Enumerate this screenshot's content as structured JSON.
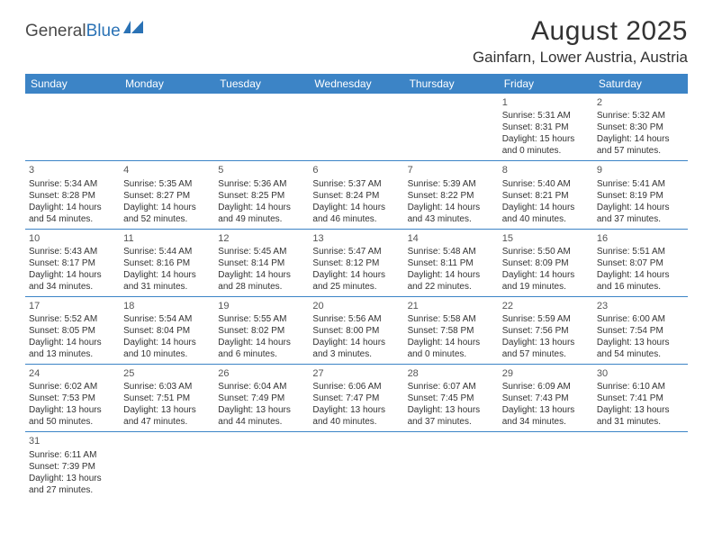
{
  "logo": {
    "part1": "General",
    "part2": "Blue"
  },
  "title": "August 2025",
  "location": "Gainfarn, Lower Austria, Austria",
  "header_bg": "#3c84c6",
  "border_color": "#3c84c6",
  "dayNames": [
    "Sunday",
    "Monday",
    "Tuesday",
    "Wednesday",
    "Thursday",
    "Friday",
    "Saturday"
  ],
  "weeks": [
    [
      null,
      null,
      null,
      null,
      null,
      {
        "n": "1",
        "r": "Sunrise: 5:31 AM",
        "s": "Sunset: 8:31 PM",
        "d1": "Daylight: 15 hours",
        "d2": "and 0 minutes."
      },
      {
        "n": "2",
        "r": "Sunrise: 5:32 AM",
        "s": "Sunset: 8:30 PM",
        "d1": "Daylight: 14 hours",
        "d2": "and 57 minutes."
      }
    ],
    [
      {
        "n": "3",
        "r": "Sunrise: 5:34 AM",
        "s": "Sunset: 8:28 PM",
        "d1": "Daylight: 14 hours",
        "d2": "and 54 minutes."
      },
      {
        "n": "4",
        "r": "Sunrise: 5:35 AM",
        "s": "Sunset: 8:27 PM",
        "d1": "Daylight: 14 hours",
        "d2": "and 52 minutes."
      },
      {
        "n": "5",
        "r": "Sunrise: 5:36 AM",
        "s": "Sunset: 8:25 PM",
        "d1": "Daylight: 14 hours",
        "d2": "and 49 minutes."
      },
      {
        "n": "6",
        "r": "Sunrise: 5:37 AM",
        "s": "Sunset: 8:24 PM",
        "d1": "Daylight: 14 hours",
        "d2": "and 46 minutes."
      },
      {
        "n": "7",
        "r": "Sunrise: 5:39 AM",
        "s": "Sunset: 8:22 PM",
        "d1": "Daylight: 14 hours",
        "d2": "and 43 minutes."
      },
      {
        "n": "8",
        "r": "Sunrise: 5:40 AM",
        "s": "Sunset: 8:21 PM",
        "d1": "Daylight: 14 hours",
        "d2": "and 40 minutes."
      },
      {
        "n": "9",
        "r": "Sunrise: 5:41 AM",
        "s": "Sunset: 8:19 PM",
        "d1": "Daylight: 14 hours",
        "d2": "and 37 minutes."
      }
    ],
    [
      {
        "n": "10",
        "r": "Sunrise: 5:43 AM",
        "s": "Sunset: 8:17 PM",
        "d1": "Daylight: 14 hours",
        "d2": "and 34 minutes."
      },
      {
        "n": "11",
        "r": "Sunrise: 5:44 AM",
        "s": "Sunset: 8:16 PM",
        "d1": "Daylight: 14 hours",
        "d2": "and 31 minutes."
      },
      {
        "n": "12",
        "r": "Sunrise: 5:45 AM",
        "s": "Sunset: 8:14 PM",
        "d1": "Daylight: 14 hours",
        "d2": "and 28 minutes."
      },
      {
        "n": "13",
        "r": "Sunrise: 5:47 AM",
        "s": "Sunset: 8:12 PM",
        "d1": "Daylight: 14 hours",
        "d2": "and 25 minutes."
      },
      {
        "n": "14",
        "r": "Sunrise: 5:48 AM",
        "s": "Sunset: 8:11 PM",
        "d1": "Daylight: 14 hours",
        "d2": "and 22 minutes."
      },
      {
        "n": "15",
        "r": "Sunrise: 5:50 AM",
        "s": "Sunset: 8:09 PM",
        "d1": "Daylight: 14 hours",
        "d2": "and 19 minutes."
      },
      {
        "n": "16",
        "r": "Sunrise: 5:51 AM",
        "s": "Sunset: 8:07 PM",
        "d1": "Daylight: 14 hours",
        "d2": "and 16 minutes."
      }
    ],
    [
      {
        "n": "17",
        "r": "Sunrise: 5:52 AM",
        "s": "Sunset: 8:05 PM",
        "d1": "Daylight: 14 hours",
        "d2": "and 13 minutes."
      },
      {
        "n": "18",
        "r": "Sunrise: 5:54 AM",
        "s": "Sunset: 8:04 PM",
        "d1": "Daylight: 14 hours",
        "d2": "and 10 minutes."
      },
      {
        "n": "19",
        "r": "Sunrise: 5:55 AM",
        "s": "Sunset: 8:02 PM",
        "d1": "Daylight: 14 hours",
        "d2": "and 6 minutes."
      },
      {
        "n": "20",
        "r": "Sunrise: 5:56 AM",
        "s": "Sunset: 8:00 PM",
        "d1": "Daylight: 14 hours",
        "d2": "and 3 minutes."
      },
      {
        "n": "21",
        "r": "Sunrise: 5:58 AM",
        "s": "Sunset: 7:58 PM",
        "d1": "Daylight: 14 hours",
        "d2": "and 0 minutes."
      },
      {
        "n": "22",
        "r": "Sunrise: 5:59 AM",
        "s": "Sunset: 7:56 PM",
        "d1": "Daylight: 13 hours",
        "d2": "and 57 minutes."
      },
      {
        "n": "23",
        "r": "Sunrise: 6:00 AM",
        "s": "Sunset: 7:54 PM",
        "d1": "Daylight: 13 hours",
        "d2": "and 54 minutes."
      }
    ],
    [
      {
        "n": "24",
        "r": "Sunrise: 6:02 AM",
        "s": "Sunset: 7:53 PM",
        "d1": "Daylight: 13 hours",
        "d2": "and 50 minutes."
      },
      {
        "n": "25",
        "r": "Sunrise: 6:03 AM",
        "s": "Sunset: 7:51 PM",
        "d1": "Daylight: 13 hours",
        "d2": "and 47 minutes."
      },
      {
        "n": "26",
        "r": "Sunrise: 6:04 AM",
        "s": "Sunset: 7:49 PM",
        "d1": "Daylight: 13 hours",
        "d2": "and 44 minutes."
      },
      {
        "n": "27",
        "r": "Sunrise: 6:06 AM",
        "s": "Sunset: 7:47 PM",
        "d1": "Daylight: 13 hours",
        "d2": "and 40 minutes."
      },
      {
        "n": "28",
        "r": "Sunrise: 6:07 AM",
        "s": "Sunset: 7:45 PM",
        "d1": "Daylight: 13 hours",
        "d2": "and 37 minutes."
      },
      {
        "n": "29",
        "r": "Sunrise: 6:09 AM",
        "s": "Sunset: 7:43 PM",
        "d1": "Daylight: 13 hours",
        "d2": "and 34 minutes."
      },
      {
        "n": "30",
        "r": "Sunrise: 6:10 AM",
        "s": "Sunset: 7:41 PM",
        "d1": "Daylight: 13 hours",
        "d2": "and 31 minutes."
      }
    ],
    [
      {
        "n": "31",
        "r": "Sunrise: 6:11 AM",
        "s": "Sunset: 7:39 PM",
        "d1": "Daylight: 13 hours",
        "d2": "and 27 minutes."
      },
      null,
      null,
      null,
      null,
      null,
      null
    ]
  ]
}
